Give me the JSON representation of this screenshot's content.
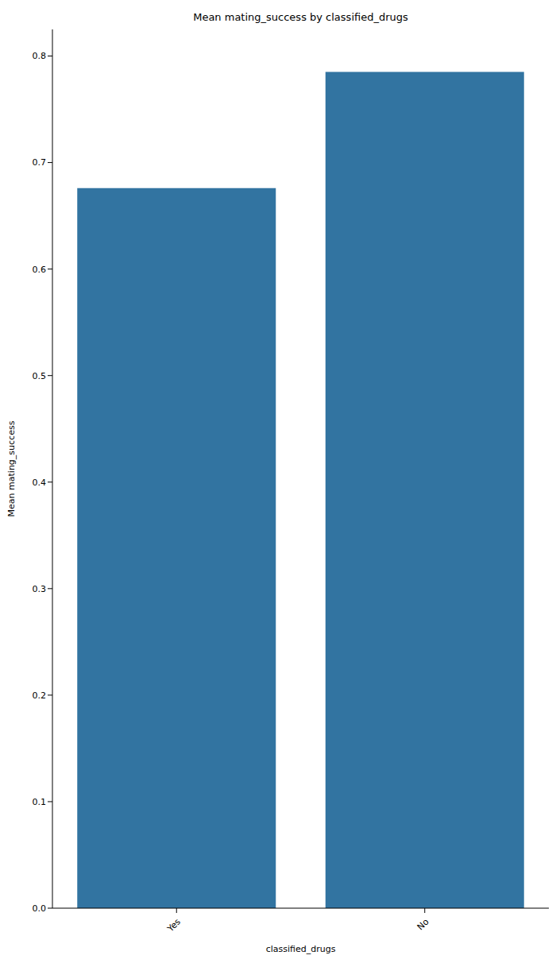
{
  "chart_data": {
    "type": "bar",
    "title": "Mean mating_success by classified_drugs",
    "x_label": "classified_drugs",
    "y_label": "Mean mating_success",
    "categories": [
      "Yes",
      "No"
    ],
    "values": [
      0.676,
      0.785
    ],
    "color": "#3274a1",
    "ylim": [
      0,
      0.825
    ],
    "yticks": [
      {
        "value": 0,
        "label": "0.0"
      },
      0.1,
      0.2,
      0.3,
      0.4,
      0.5,
      0.6,
      0.7,
      0.8
    ],
    "grid": false,
    "data_labels": false
  }
}
